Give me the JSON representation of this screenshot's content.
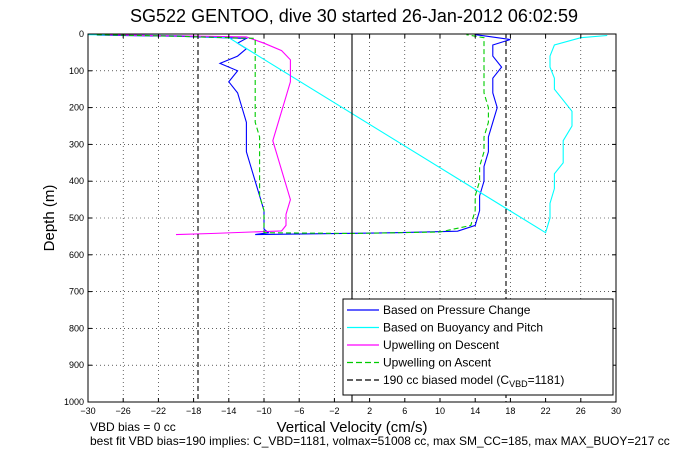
{
  "chart_data": {
    "type": "line",
    "title": "SG522 GENTOO, dive 30 started 26-Jan-2012 06:02:59",
    "xlabel": "Vertical Velocity (cm/s)",
    "ylabel": "Depth (m)",
    "xlim": [
      -30,
      30
    ],
    "ylim": [
      0,
      1000
    ],
    "y_reversed": true,
    "grid": true,
    "legend_position": "bottom-right",
    "xticks": [
      -30,
      -26,
      -22,
      -18,
      -14,
      -10,
      -6,
      -2,
      2,
      6,
      10,
      14,
      18,
      22,
      26,
      30
    ],
    "yticks": [
      0,
      100,
      200,
      300,
      400,
      500,
      600,
      700,
      800,
      900,
      1000
    ],
    "series": [
      {
        "name": "Based on Pressure Change",
        "color": "#0000ff",
        "style": "solid",
        "points": [
          [
            -29,
            3
          ],
          [
            -20,
            6
          ],
          [
            -12,
            12
          ],
          [
            -13,
            25
          ],
          [
            -12,
            40
          ],
          [
            -13,
            60
          ],
          [
            -15,
            80
          ],
          [
            -13,
            100
          ],
          [
            -14,
            130
          ],
          [
            -13,
            160
          ],
          [
            -12.5,
            200
          ],
          [
            -12,
            240
          ],
          [
            -12,
            280
          ],
          [
            -12,
            320
          ],
          [
            -11.5,
            360
          ],
          [
            -11,
            400
          ],
          [
            -10.5,
            440
          ],
          [
            -10,
            480
          ],
          [
            -10,
            510
          ],
          [
            -10,
            530
          ],
          [
            -9.5,
            540
          ],
          [
            -11,
            545
          ],
          [
            5,
            540
          ],
          [
            12,
            536
          ],
          [
            14,
            520
          ],
          [
            14.5,
            480
          ],
          [
            14.5,
            440
          ],
          [
            15,
            400
          ],
          [
            15,
            360
          ],
          [
            15.5,
            320
          ],
          [
            15.5,
            280
          ],
          [
            16,
            240
          ],
          [
            16.5,
            200
          ],
          [
            16,
            160
          ],
          [
            16,
            120
          ],
          [
            17,
            90
          ],
          [
            16,
            60
          ],
          [
            16,
            30
          ],
          [
            18,
            15
          ],
          [
            15,
            5
          ],
          [
            14,
            2
          ]
        ]
      },
      {
        "name": "Based on Buoyancy and Pitch",
        "color": "#00ffff",
        "style": "solid",
        "points": [
          [
            -30,
            2
          ],
          [
            -20,
            4
          ],
          [
            -14,
            10
          ],
          [
            22,
            540
          ],
          [
            22.5,
            500
          ],
          [
            22.5,
            460
          ],
          [
            23,
            420
          ],
          [
            23,
            380
          ],
          [
            24,
            350
          ],
          [
            24,
            320
          ],
          [
            24,
            290
          ],
          [
            25,
            250
          ],
          [
            25,
            210
          ],
          [
            24,
            180
          ],
          [
            23,
            150
          ],
          [
            23,
            120
          ],
          [
            22.5,
            90
          ],
          [
            22.5,
            60
          ],
          [
            23,
            30
          ],
          [
            26,
            10
          ],
          [
            29,
            4
          ]
        ]
      },
      {
        "name": "Upwelling on Descent",
        "color": "#ff00ff",
        "style": "solid",
        "points": [
          [
            -28,
            2
          ],
          [
            -12,
            8
          ],
          [
            -10,
            25
          ],
          [
            -8,
            45
          ],
          [
            -7,
            70
          ],
          [
            -7,
            100
          ],
          [
            -7,
            130
          ],
          [
            -7.5,
            170
          ],
          [
            -8,
            210
          ],
          [
            -8.5,
            250
          ],
          [
            -9,
            290
          ],
          [
            -8.5,
            330
          ],
          [
            -8,
            370
          ],
          [
            -7.5,
            410
          ],
          [
            -7,
            450
          ],
          [
            -7.5,
            490
          ],
          [
            -7.5,
            520
          ],
          [
            -8,
            535
          ],
          [
            -16,
            542
          ],
          [
            -20,
            545
          ]
        ]
      },
      {
        "name": "Upwelling on Ascent",
        "color": "#00cc00",
        "style": "dashed",
        "points": [
          [
            -29,
            2
          ],
          [
            -20,
            6
          ],
          [
            -11,
            12
          ],
          [
            -11,
            40
          ],
          [
            -11,
            80
          ],
          [
            -11,
            120
          ],
          [
            -11,
            160
          ],
          [
            -11,
            200
          ],
          [
            -11,
            240
          ],
          [
            -10.5,
            280
          ],
          [
            -10.5,
            320
          ],
          [
            -10.5,
            360
          ],
          [
            -10.5,
            400
          ],
          [
            -10.5,
            440
          ],
          [
            -10,
            480
          ],
          [
            -10,
            520
          ],
          [
            -10,
            540
          ],
          [
            0,
            542
          ],
          [
            10,
            538
          ],
          [
            13.5,
            520
          ],
          [
            14,
            480
          ],
          [
            14,
            440
          ],
          [
            14.5,
            400
          ],
          [
            14.5,
            360
          ],
          [
            15,
            320
          ],
          [
            15,
            280
          ],
          [
            15.5,
            240
          ],
          [
            15.5,
            200
          ],
          [
            15,
            160
          ],
          [
            15,
            120
          ],
          [
            15,
            80
          ],
          [
            15,
            40
          ],
          [
            15,
            10
          ],
          [
            13,
            2
          ]
        ]
      },
      {
        "name": "190 cc biased model (C_VBD=1181)",
        "color": "#000000",
        "style": "dashed",
        "points": [
          [
            -17.5,
            0
          ],
          [
            -17.5,
            1000
          ],
          [
            17.5,
            1000
          ],
          [
            17.5,
            0
          ]
        ]
      },
      {
        "name": "",
        "color": "#000000",
        "style": "solid",
        "points": [
          [
            0,
            0
          ],
          [
            0,
            1000
          ]
        ]
      }
    ]
  },
  "legend": {
    "entries": [
      {
        "label": "Based on Pressure Change",
        "color": "#0000ff",
        "style": "solid"
      },
      {
        "label": "Based on Buoyancy and Pitch",
        "color": "#00ffff",
        "style": "solid"
      },
      {
        "label": "Upwelling on Descent",
        "color": "#ff00ff",
        "style": "solid"
      },
      {
        "label": "Upwelling on Ascent",
        "color": "#00cc00",
        "style": "dashed"
      },
      {
        "label_main": "190 cc biased model (C",
        "label_sub": "VBD",
        "label_tail": "=1181)",
        "color": "#000000",
        "style": "dashed"
      }
    ]
  },
  "footer": {
    "line1": "VBD bias = 0 cc",
    "line2": "best fit VBD bias=190 implies: C_VBD=1181, volmax=51008 cc, max SM_CC=185, max MAX_BUOY=217 cc"
  }
}
